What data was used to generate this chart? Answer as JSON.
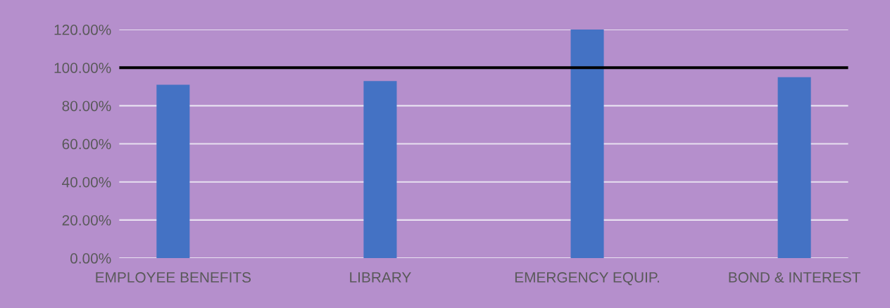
{
  "chart_data": {
    "type": "bar",
    "categories": [
      "EMPLOYEE BENEFITS",
      "LIBRARY",
      "EMERGENCY EQUIP.",
      "BOND & INTEREST"
    ],
    "values": [
      91,
      93,
      120,
      95
    ],
    "color": "#4472c4",
    "ylim": [
      0,
      120
    ],
    "yticks": [
      {
        "value": 0,
        "label": "0.00%"
      },
      {
        "value": 20,
        "label": "20.00%"
      },
      {
        "value": 40,
        "label": "40.00%"
      },
      {
        "value": 60,
        "label": "60.00%"
      },
      {
        "value": 80,
        "label": "80.00%"
      },
      {
        "value": 100,
        "label": "100.00%"
      },
      {
        "value": 120,
        "label": "120.00%"
      }
    ],
    "grid": "y",
    "ref_lines": [
      {
        "axis": "y",
        "value": 100,
        "color": "#000000"
      }
    ]
  }
}
